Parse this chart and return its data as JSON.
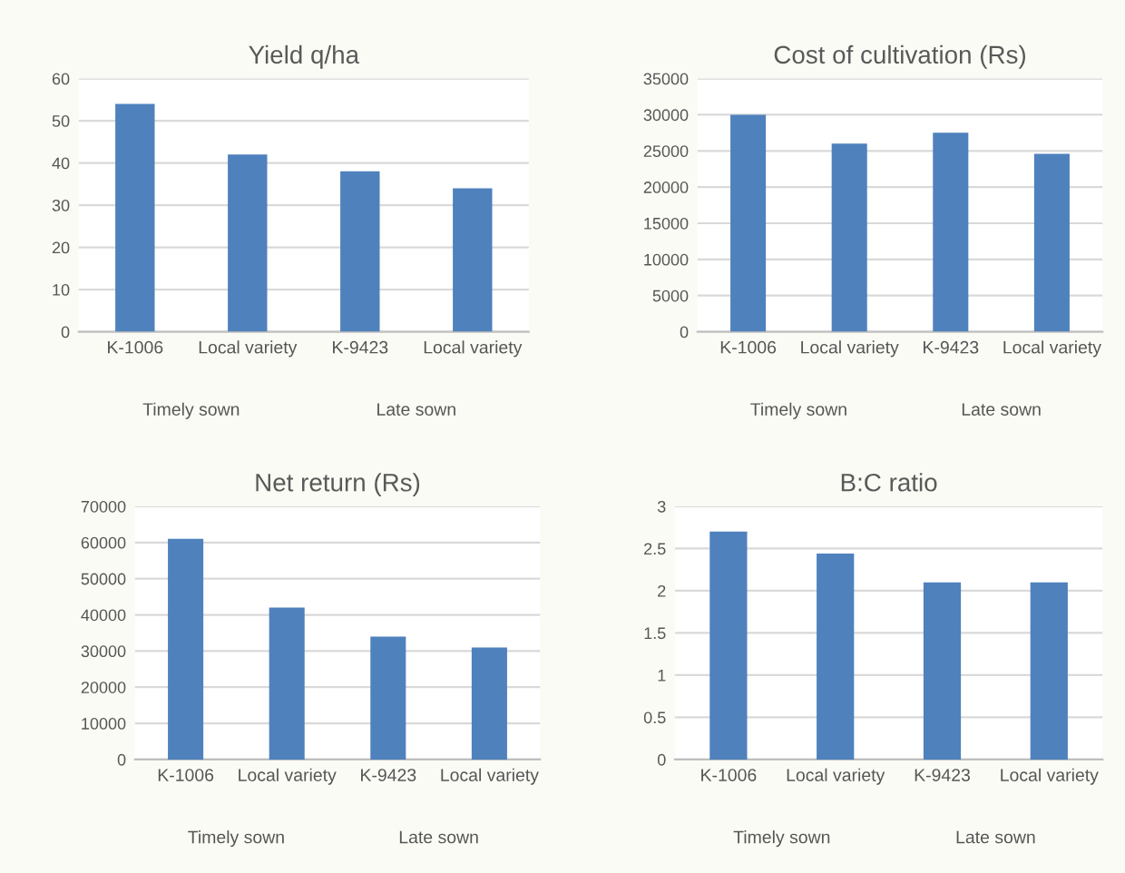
{
  "chart_data": [
    {
      "type": "bar",
      "title": "Yield q/ha",
      "categories": [
        "K-1006",
        "Local variety",
        "K-9423",
        "Local variety"
      ],
      "values": [
        54,
        42,
        38,
        34
      ],
      "color": "#4f81bd",
      "ylim": [
        0,
        60
      ],
      "yticks": [
        0,
        10,
        20,
        30,
        40,
        50,
        60
      ],
      "grid": "y",
      "annotations": [
        "Timely sown",
        "Late sown"
      ]
    },
    {
      "type": "bar",
      "title": "Cost of cultivation (Rs)",
      "categories": [
        "K-1006",
        "Local variety",
        "K-9423",
        "Local variety"
      ],
      "values": [
        30000,
        26000,
        27500,
        24600
      ],
      "color": "#4f81bd",
      "ylim": [
        0,
        35000
      ],
      "yticks": [
        0,
        5000,
        10000,
        15000,
        20000,
        25000,
        30000,
        35000
      ],
      "grid": "y",
      "annotations": [
        "Timely sown",
        "Late sown"
      ]
    },
    {
      "type": "bar",
      "title": "Net return (Rs)",
      "categories": [
        "K-1006",
        "Local variety",
        "K-9423",
        "Local variety"
      ],
      "values": [
        61000,
        42000,
        34000,
        31000
      ],
      "color": "#4f81bd",
      "ylim": [
        0,
        70000
      ],
      "yticks": [
        0,
        10000,
        20000,
        30000,
        40000,
        50000,
        60000,
        70000
      ],
      "grid": "y",
      "annotations": [
        "Timely sown",
        "Late sown"
      ]
    },
    {
      "type": "bar",
      "title": "B:C ratio",
      "categories": [
        "K-1006",
        "Local variety",
        "K-9423",
        "Local variety"
      ],
      "values": [
        2.7,
        2.44,
        2.1,
        2.1
      ],
      "color": "#4f81bd",
      "ylim": [
        0,
        3
      ],
      "yticks": [
        0,
        0.5,
        1,
        1.5,
        2,
        2.5,
        3
      ],
      "grid": "y",
      "annotations": [
        "Timely sown",
        "Late sown"
      ]
    }
  ]
}
